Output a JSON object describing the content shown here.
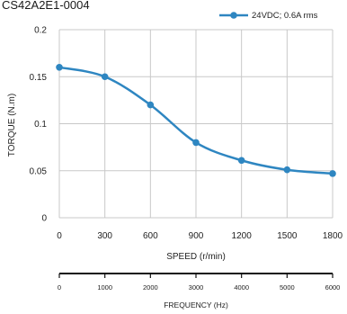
{
  "chart_data": {
    "type": "line",
    "title": "CS42A2E1-0004",
    "xlabel": "SPEED (r/min)",
    "ylabel": "TORQUE (N.m)",
    "xlim": [
      0,
      1800
    ],
    "ylim": [
      0,
      0.2
    ],
    "x_ticks": [
      "0",
      "300",
      "600",
      "900",
      "1200",
      "1500",
      "1800"
    ],
    "y_ticks": [
      "0",
      "0.05",
      "0.1",
      "0.15",
      "0.2"
    ],
    "grid": true,
    "legend_position": "top-right",
    "series": [
      {
        "name": "24VDC; 0.6A rms",
        "color": "#2E86C1",
        "x": [
          0,
          300,
          600,
          900,
          1200,
          1500,
          1800
        ],
        "y": [
          0.16,
          0.15,
          0.12,
          0.08,
          0.061,
          0.051,
          0.047
        ]
      }
    ],
    "secondary_axis": {
      "label": "FREQUENCY (Hz)",
      "ticks": [
        "0",
        "1000",
        "2000",
        "3000",
        "4000",
        "5000",
        "6000"
      ]
    }
  }
}
